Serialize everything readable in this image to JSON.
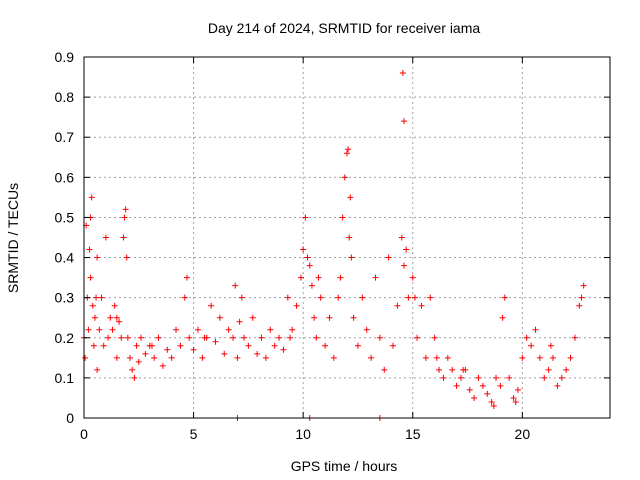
{
  "chart_data": {
    "type": "scatter",
    "title": "Day 214 of 2024, SRMTID for receiver iama",
    "xlabel": "GPS time / hours",
    "ylabel": "SRMTID / TECUs",
    "xlim": [
      0,
      24
    ],
    "ylim": [
      0,
      0.9
    ],
    "xticks": [
      0,
      5,
      10,
      15,
      20
    ],
    "xtick_labels": [
      "0",
      "5",
      "10",
      "15",
      "20"
    ],
    "yticks": [
      0,
      0.1,
      0.2,
      0.3,
      0.4,
      0.5,
      0.6,
      0.7,
      0.8,
      0.9
    ],
    "ytick_labels": [
      "0",
      "0.1",
      "0.2",
      "0.3",
      "0.4",
      "0.5",
      "0.6",
      "0.7",
      "0.8",
      "0.9"
    ],
    "grid": true,
    "marker": "plus",
    "color": "#ff0000",
    "series": [
      {
        "name": "SRMTID",
        "x": [
          0.0,
          0.1,
          0.15,
          0.2,
          0.25,
          0.3,
          0.35,
          0.4,
          0.45,
          0.5,
          0.55,
          0.6,
          0.7,
          0.8,
          0.9,
          1.0,
          1.1,
          1.2,
          1.3,
          1.4,
          1.5,
          1.6,
          1.7,
          1.8,
          1.85,
          1.9,
          1.95,
          2.0,
          2.1,
          2.2,
          2.3,
          2.4,
          2.5,
          2.6,
          2.8,
          3.0,
          3.2,
          3.4,
          3.6,
          3.8,
          4.0,
          4.2,
          4.4,
          4.6,
          4.7,
          4.8,
          5.0,
          5.2,
          5.4,
          5.6,
          5.8,
          6.0,
          6.2,
          6.4,
          6.6,
          6.8,
          6.9,
          7.0,
          7.1,
          7.3,
          7.5,
          7.7,
          7.9,
          8.1,
          8.3,
          8.5,
          8.7,
          8.9,
          9.1,
          9.3,
          9.5,
          9.7,
          9.9,
          10.0,
          10.1,
          10.2,
          10.3,
          10.4,
          10.5,
          10.6,
          10.8,
          11.0,
          11.2,
          11.4,
          11.6,
          11.7,
          11.8,
          11.9,
          12.0,
          12.1,
          12.2,
          12.3,
          12.5,
          12.7,
          12.9,
          13.1,
          13.3,
          13.5,
          13.7,
          13.9,
          14.1,
          14.3,
          14.5,
          14.6,
          14.7,
          14.8,
          15.0,
          15.2,
          15.4,
          15.6,
          15.8,
          16.0,
          16.2,
          16.4,
          16.6,
          16.8,
          17.0,
          17.2,
          17.4,
          17.6,
          17.8,
          18.0,
          18.2,
          18.4,
          18.6,
          18.8,
          19.0,
          19.1,
          19.2,
          19.4,
          19.6,
          19.8,
          20.0,
          20.2,
          20.4,
          20.6,
          20.8,
          21.0,
          21.2,
          21.4,
          21.6,
          21.8,
          22.0,
          22.2,
          22.4,
          22.6,
          22.8,
          0.05,
          0.3,
          0.6,
          1.5,
          3.1,
          5.5,
          7.2,
          9.4,
          10.7,
          12.05,
          12.15,
          14.55,
          14.6,
          15.1,
          16.1,
          17.3,
          18.7,
          19.7,
          21.3,
          22.7,
          7.0,
          10.3,
          13.5
        ],
        "y": [
          0.2,
          0.48,
          0.3,
          0.22,
          0.42,
          0.35,
          0.55,
          0.28,
          0.18,
          0.25,
          0.3,
          0.12,
          0.22,
          0.3,
          0.18,
          0.45,
          0.2,
          0.25,
          0.22,
          0.28,
          0.15,
          0.24,
          0.2,
          0.45,
          0.5,
          0.52,
          0.4,
          0.2,
          0.15,
          0.12,
          0.1,
          0.18,
          0.14,
          0.2,
          0.16,
          0.18,
          0.15,
          0.2,
          0.13,
          0.17,
          0.15,
          0.22,
          0.18,
          0.3,
          0.35,
          0.2,
          0.17,
          0.22,
          0.15,
          0.2,
          0.28,
          0.19,
          0.25,
          0.16,
          0.22,
          0.2,
          0.33,
          0.15,
          0.24,
          0.2,
          0.18,
          0.25,
          0.16,
          0.2,
          0.15,
          0.22,
          0.18,
          0.2,
          0.17,
          0.3,
          0.22,
          0.28,
          0.35,
          0.42,
          0.5,
          0.4,
          0.38,
          0.33,
          0.25,
          0.2,
          0.3,
          0.18,
          0.25,
          0.15,
          0.3,
          0.35,
          0.5,
          0.6,
          0.66,
          0.45,
          0.4,
          0.25,
          0.18,
          0.3,
          0.22,
          0.15,
          0.35,
          0.2,
          0.12,
          0.4,
          0.18,
          0.28,
          0.45,
          0.38,
          0.42,
          0.3,
          0.35,
          0.2,
          0.28,
          0.15,
          0.3,
          0.2,
          0.12,
          0.1,
          0.15,
          0.12,
          0.08,
          0.1,
          0.12,
          0.07,
          0.05,
          0.1,
          0.08,
          0.06,
          0.04,
          0.1,
          0.08,
          0.25,
          0.3,
          0.1,
          0.05,
          0.07,
          0.15,
          0.2,
          0.18,
          0.22,
          0.15,
          0.1,
          0.12,
          0.15,
          0.08,
          0.1,
          0.12,
          0.15,
          0.2,
          0.28,
          0.33,
          0.15,
          0.5,
          0.4,
          0.25,
          0.18,
          0.2,
          0.3,
          0.2,
          0.35,
          0.67,
          0.55,
          0.86,
          0.74,
          0.3,
          0.15,
          0.12,
          0.03,
          0.04,
          0.18,
          0.3,
          0.0,
          0.0,
          0.0
        ]
      }
    ]
  }
}
